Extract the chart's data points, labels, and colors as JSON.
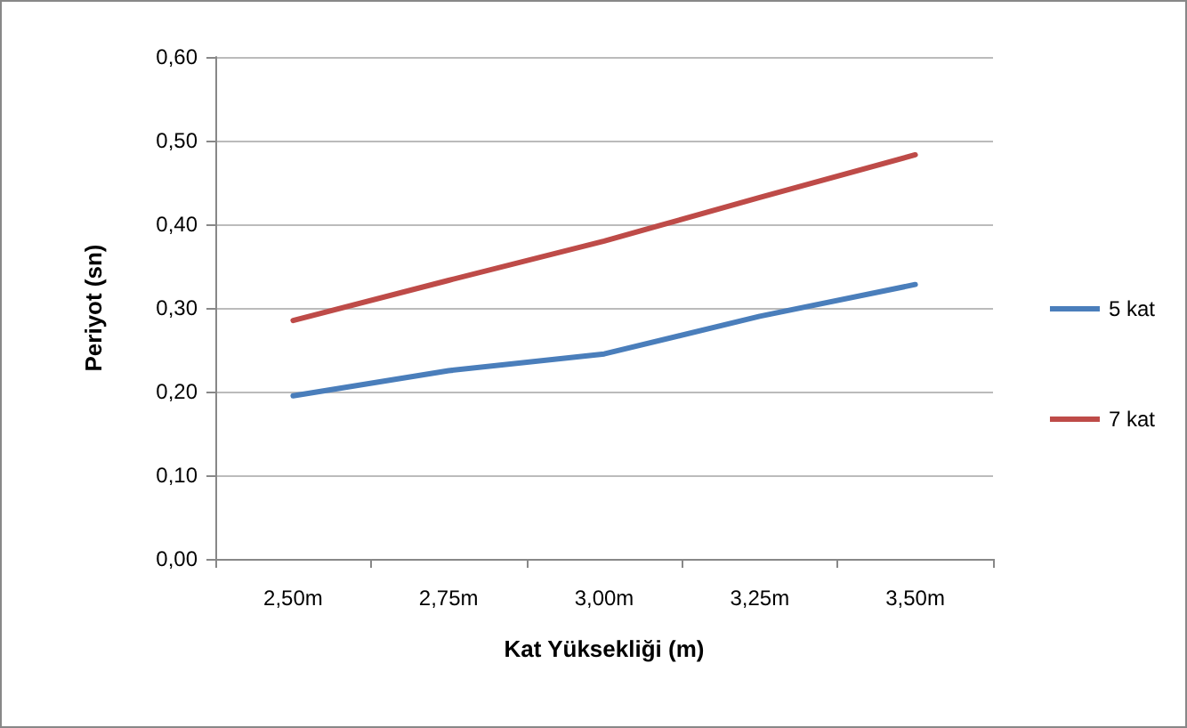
{
  "chart_data": {
    "type": "line",
    "xlabel": "Kat Yüksekliği (m)",
    "ylabel": "Periyot (sn)",
    "categories": [
      "2,50m",
      "2,75m",
      "3,00m",
      "3,25m",
      "3,50m"
    ],
    "series": [
      {
        "name": "5 kat",
        "color": "#4a7ebb",
        "values": [
          0.195,
          0.225,
          0.245,
          0.29,
          0.328
        ]
      },
      {
        "name": "7 kat",
        "color": "#be4b48",
        "values": [
          0.285,
          0.333,
          0.38,
          0.432,
          0.483
        ]
      }
    ],
    "ylim": [
      0,
      0.6
    ],
    "yticks": [
      {
        "value": 0,
        "label": "0,00"
      },
      {
        "value": 0.1,
        "label": "0,10"
      },
      {
        "value": 0.2,
        "label": "0,20"
      },
      {
        "value": 0.3,
        "label": "0,30"
      },
      {
        "value": 0.4,
        "label": "0,40"
      },
      {
        "value": 0.5,
        "label": "0,50"
      },
      {
        "value": 0.6,
        "label": "0,60"
      }
    ],
    "grid": "y",
    "legend": "right",
    "marker": "none",
    "line_style": "solid"
  }
}
